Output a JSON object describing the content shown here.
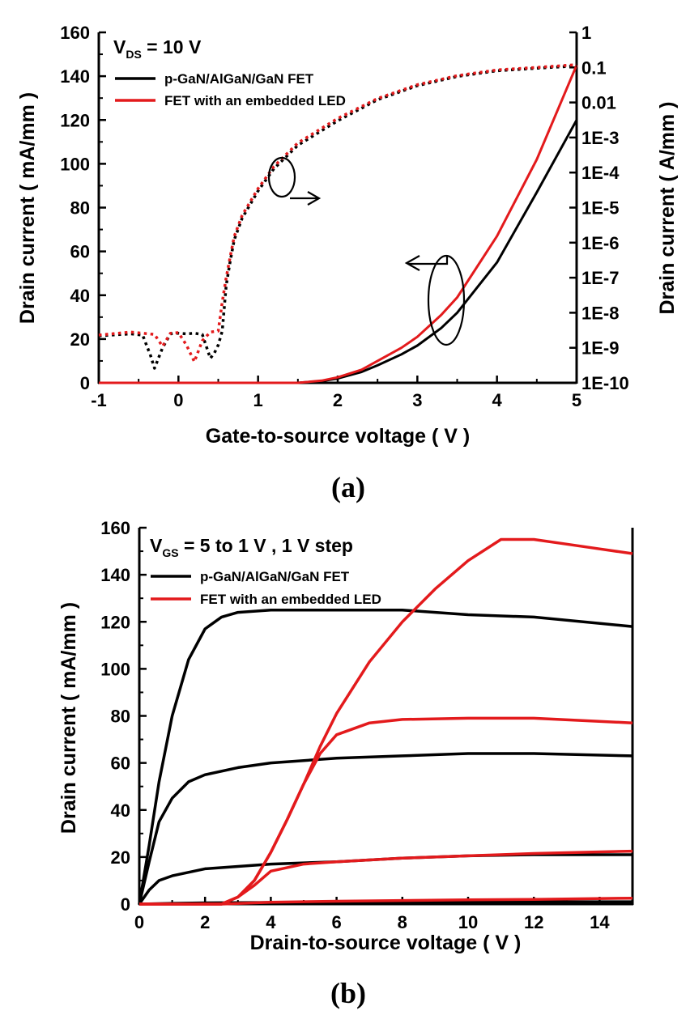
{
  "chart_data": [
    {
      "type": "line",
      "panel_label": "(a)",
      "annotation": {
        "prefix": "V",
        "sub": "DS",
        "suffix": " = 10 V"
      },
      "xlabel": "Gate-to-source voltage ( V )",
      "ylabel": "Drain current ( mA/mm )",
      "y2label": "Drain current ( A/mm )",
      "xlim": [
        -1,
        5
      ],
      "ylim": [
        0,
        160
      ],
      "y2_scale": "log",
      "y2lim": [
        1e-10,
        1
      ],
      "x_ticks": [
        "-1",
        "0",
        "1",
        "2",
        "3",
        "4",
        "5"
      ],
      "y_ticks": [
        "0",
        "20",
        "40",
        "60",
        "80",
        "100",
        "120",
        "140",
        "160"
      ],
      "y2_ticks": [
        "1E-10",
        "1E-9",
        "1E-8",
        "1E-7",
        "1E-6",
        "1E-5",
        "1E-4",
        "1E-3",
        "0.01",
        "0.1",
        "1"
      ],
      "legend": [
        "p-GaN/AlGaN/GaN FET",
        "FET with an embedded LED"
      ],
      "legend_position": "top-left",
      "colors": {
        "fet": "#000000",
        "led": "#e31a1c"
      },
      "series": [
        {
          "name": "p-GaN/AlGaN/GaN FET",
          "axis": "left (linear)",
          "style": "solid",
          "color": "#000000",
          "x": [
            -1,
            1.5,
            1.8,
            2,
            2.3,
            2.5,
            2.8,
            3,
            3.3,
            3.5,
            4,
            4.5,
            5
          ],
          "y": [
            0,
            0,
            0.8,
            2,
            5,
            8,
            13,
            17,
            25,
            32,
            55,
            87,
            120
          ]
        },
        {
          "name": "FET with an embedded LED",
          "axis": "left (linear)",
          "style": "solid",
          "color": "#e31a1c",
          "x": [
            -1,
            1.5,
            1.8,
            2,
            2.3,
            2.5,
            2.8,
            3,
            3.3,
            3.5,
            4,
            4.5,
            5
          ],
          "y": [
            0,
            0,
            1,
            2.5,
            6,
            10,
            16,
            21,
            31,
            39,
            67,
            102,
            145
          ]
        },
        {
          "name": "p-GaN/AlGaN/GaN FET",
          "axis": "right (log)",
          "style": "dotted",
          "color": "#000000",
          "x": [
            -1,
            -0.6,
            -0.45,
            -0.35,
            -0.3,
            -0.2,
            -0.1,
            0,
            0.1,
            0.2,
            0.3,
            0.4,
            0.45,
            0.5,
            0.55,
            0.6,
            0.65,
            0.7,
            0.8,
            1,
            1.2,
            1.5,
            2,
            2.5,
            3,
            3.5,
            4,
            4.5,
            5
          ],
          "y": [
            2.2e-09,
            2.5e-09,
            2.3e-09,
            6e-10,
            2.6e-10,
            1e-09,
            2.5e-09,
            2.6e-09,
            2.5e-09,
            2.6e-09,
            2.4e-09,
            5e-10,
            7e-10,
            1.2e-09,
            3e-09,
            6e-08,
            3e-07,
            1.2e-06,
            5e-06,
            3e-05,
            0.00013,
            0.0006,
            0.003,
            0.012,
            0.03,
            0.055,
            0.08,
            0.095,
            0.11
          ]
        },
        {
          "name": "FET with an embedded LED",
          "axis": "right (log)",
          "style": "dotted",
          "color": "#e31a1c",
          "x": [
            -1,
            -0.6,
            -0.45,
            -0.3,
            -0.2,
            -0.1,
            0,
            0.1,
            0.2,
            0.3,
            0.4,
            0.5,
            0.55,
            0.6,
            0.65,
            0.7,
            0.8,
            1,
            1.2,
            1.5,
            2,
            2.5,
            3,
            3.5,
            4,
            4.5,
            5
          ],
          "y": [
            2.3e-09,
            2.8e-09,
            2.6e-09,
            2.4e-09,
            1.1e-09,
            2.6e-09,
            2.7e-09,
            1.2e-09,
            4e-10,
            1.6e-09,
            2.8e-09,
            3e-09,
            2e-08,
            1e-07,
            4e-07,
            1.5e-06,
            6e-06,
            3.5e-05,
            0.00015,
            0.0007,
            0.0035,
            0.013,
            0.032,
            0.058,
            0.085,
            0.1,
            0.12
          ]
        }
      ]
    },
    {
      "type": "line",
      "panel_label": "(b)",
      "annotation": {
        "prefix": "V",
        "sub": "GS",
        "suffix": " = 5 to 1 V , 1 V step"
      },
      "xlabel": "Drain-to-source voltage ( V )",
      "ylabel": "Drain current ( mA/mm )",
      "xlim": [
        0,
        15
      ],
      "ylim": [
        0,
        160
      ],
      "x_ticks": [
        "0",
        "2",
        "4",
        "6",
        "8",
        "10",
        "12",
        "14"
      ],
      "y_ticks": [
        "0",
        "20",
        "40",
        "60",
        "80",
        "100",
        "120",
        "140",
        "160"
      ],
      "legend": [
        "p-GaN/AlGaN/GaN FET",
        "FET with an embedded LED"
      ],
      "legend_position": "top-left",
      "colors": {
        "fet": "#000000",
        "led": "#e31a1c"
      },
      "series": [
        {
          "name": "p-GaN/AlGaN/GaN FET",
          "color": "#000000",
          "x": [
            0,
            0.3,
            0.6,
            1,
            1.5,
            2,
            2.5,
            3,
            4,
            6,
            8,
            10,
            12,
            15
          ],
          "y": [
            0,
            25,
            52,
            80,
            104,
            117,
            122,
            124,
            125,
            125,
            125,
            123,
            122,
            118
          ]
        },
        {
          "name": "p-GaN/AlGaN/GaN FET",
          "color": "#000000",
          "x": [
            0,
            0.3,
            0.6,
            1,
            1.5,
            2,
            3,
            4,
            6,
            8,
            10,
            12,
            15
          ],
          "y": [
            0,
            18,
            35,
            45,
            52,
            55,
            58,
            60,
            62,
            63,
            64,
            64,
            63
          ]
        },
        {
          "name": "p-GaN/AlGaN/GaN FET",
          "color": "#000000",
          "x": [
            0,
            0.3,
            0.6,
            1,
            2,
            3,
            4,
            6,
            8,
            10,
            12,
            15
          ],
          "y": [
            0,
            6,
            10,
            12,
            15,
            16,
            17,
            18,
            19.5,
            20.5,
            21,
            21
          ]
        },
        {
          "name": "p-GaN/AlGaN/GaN FET",
          "color": "#000000",
          "x": [
            0,
            1,
            2,
            4,
            6,
            8,
            10,
            12,
            15
          ],
          "y": [
            0,
            0.3,
            0.5,
            0.7,
            0.8,
            0.9,
            1,
            1,
            1
          ]
        },
        {
          "name": "FET with an embedded LED",
          "color": "#e31a1c",
          "x": [
            0,
            2.5,
            3,
            3.5,
            4,
            4.5,
            5,
            5.5,
            6,
            7,
            8,
            9,
            10,
            11,
            12,
            13,
            14,
            15
          ],
          "y": [
            0,
            0,
            3,
            10,
            22,
            36,
            51,
            67,
            81,
            103,
            120,
            134,
            146,
            155,
            155,
            153,
            151,
            149
          ]
        },
        {
          "name": "FET with an embedded LED",
          "color": "#e31a1c",
          "x": [
            0,
            2.5,
            3,
            3.5,
            4,
            4.5,
            5,
            5.5,
            6,
            7,
            8,
            10,
            12,
            15
          ],
          "y": [
            0,
            0,
            3,
            10,
            22,
            36,
            51,
            64,
            72,
            77,
            78.5,
            79,
            79,
            77
          ]
        },
        {
          "name": "FET with an embedded LED",
          "color": "#e31a1c",
          "x": [
            0,
            2.5,
            3,
            3.5,
            4,
            5,
            6,
            8,
            10,
            12,
            15
          ],
          "y": [
            0,
            0,
            3,
            8,
            14,
            17,
            18,
            19.5,
            20.5,
            21.5,
            22.5
          ]
        },
        {
          "name": "FET with an embedded LED",
          "color": "#e31a1c",
          "x": [
            0,
            2.5,
            4,
            6,
            8,
            10,
            12,
            15
          ],
          "y": [
            0,
            0,
            0.8,
            1.2,
            1.5,
            1.8,
            2,
            2.5
          ]
        }
      ]
    }
  ]
}
